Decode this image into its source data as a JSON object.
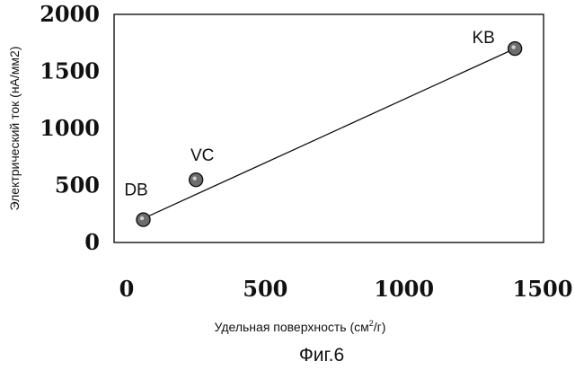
{
  "chart_data": {
    "type": "scatter",
    "xlabel": "Удельная поверхность (см",
    "xlabel_sup": "2",
    "xlabel_tail": "/г)",
    "ylabel": "Электрический ток (нА/мм2)",
    "caption": "Фиг.6",
    "xlim": [
      0,
      1500
    ],
    "ylim": [
      0,
      2000
    ],
    "x_ticks": [
      "0",
      "500",
      "1000",
      "1500"
    ],
    "y_ticks": [
      "0",
      "500",
      "1000",
      "1500",
      "2000"
    ],
    "grid": false,
    "points": [
      {
        "label": "DB",
        "x": 60,
        "y": 200
      },
      {
        "label": "VC",
        "x": 250,
        "y": 550
      },
      {
        "label": "KB",
        "x": 1400,
        "y": 1700
      }
    ],
    "fit_line": {
      "x": [
        60,
        1400
      ],
      "y": [
        210,
        1700
      ]
    }
  }
}
